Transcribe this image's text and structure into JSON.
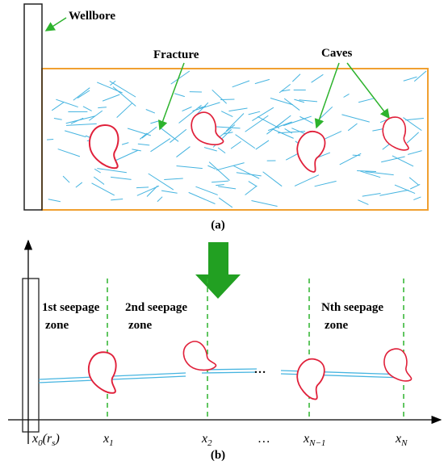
{
  "panel_a": {
    "wellbore_label": "Wellbore",
    "fracture_label": "Fracture",
    "caves_label": "Caves",
    "caption": "(a)"
  },
  "panel_b": {
    "zones": [
      [
        "1st seepage",
        "zone"
      ],
      [
        "2nd seepage",
        "zone"
      ],
      [
        "Nth seepage",
        "zone"
      ]
    ],
    "ellipsis": "…",
    "axis_labels": [
      [
        "x",
        "0",
        "(r",
        "s",
        ")"
      ],
      [
        "x",
        "1"
      ],
      [
        "x",
        "2"
      ],
      [
        "…"
      ],
      [
        "x",
        "N−1"
      ],
      [
        "x",
        "N"
      ]
    ],
    "caption": "(b)"
  }
}
